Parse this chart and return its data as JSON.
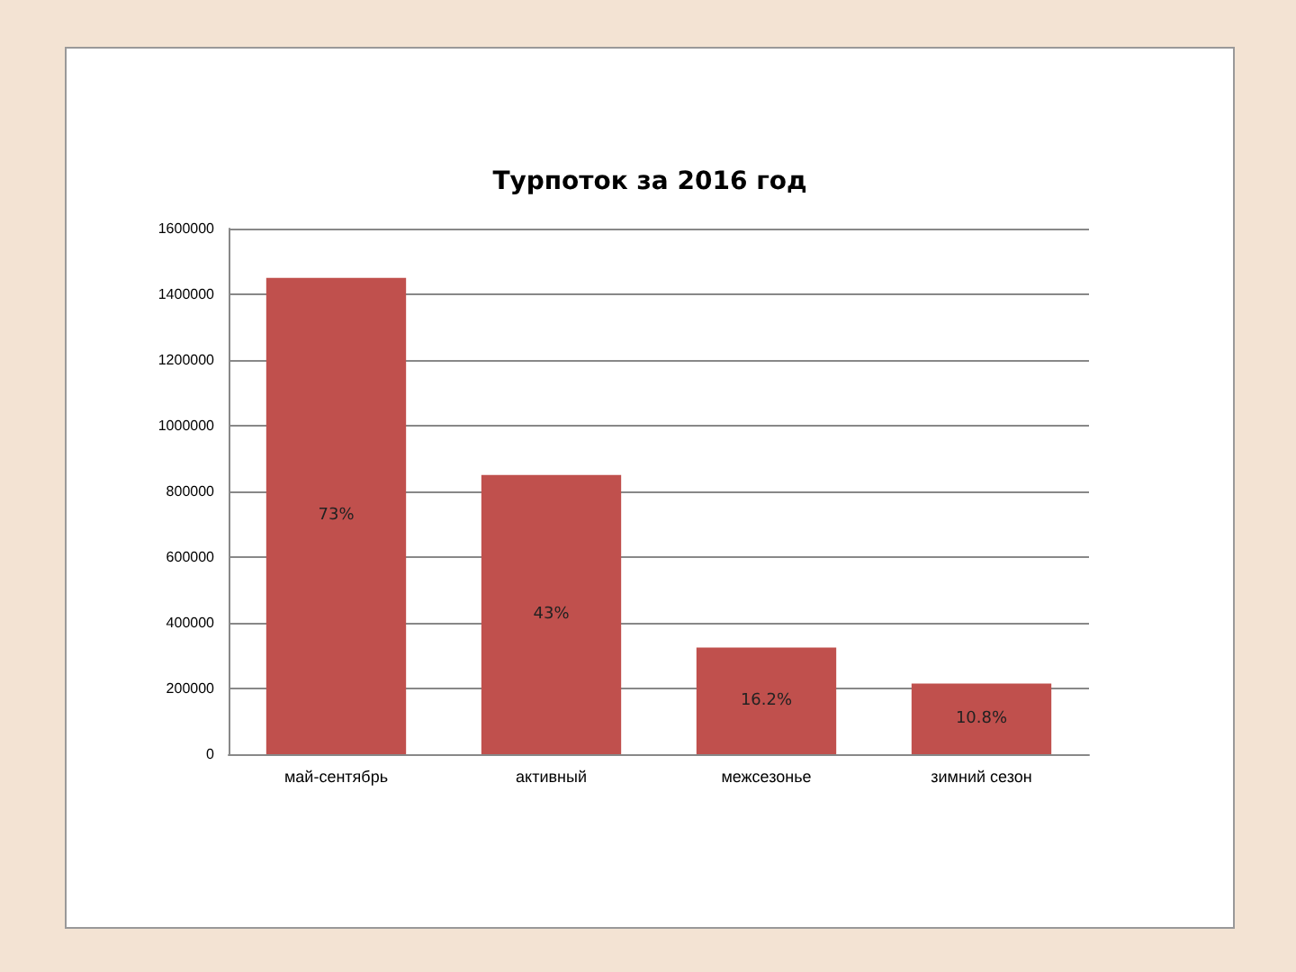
{
  "chart_data": {
    "type": "bar",
    "title": "Турпоток за 2016 год",
    "categories": [
      "май-сентябрь",
      "активный",
      "межсезонье",
      "зимний сезон"
    ],
    "values": [
      1450000,
      850000,
      325000,
      215000
    ],
    "annotations": [
      "73%",
      "43%",
      "16.2%",
      "10.8%"
    ],
    "color": "#c0504d",
    "ylim": [
      0,
      1600000
    ],
    "yticks": [
      0,
      200000,
      400000,
      600000,
      800000,
      1000000,
      1200000,
      1400000,
      1600000
    ],
    "grid": "y"
  }
}
